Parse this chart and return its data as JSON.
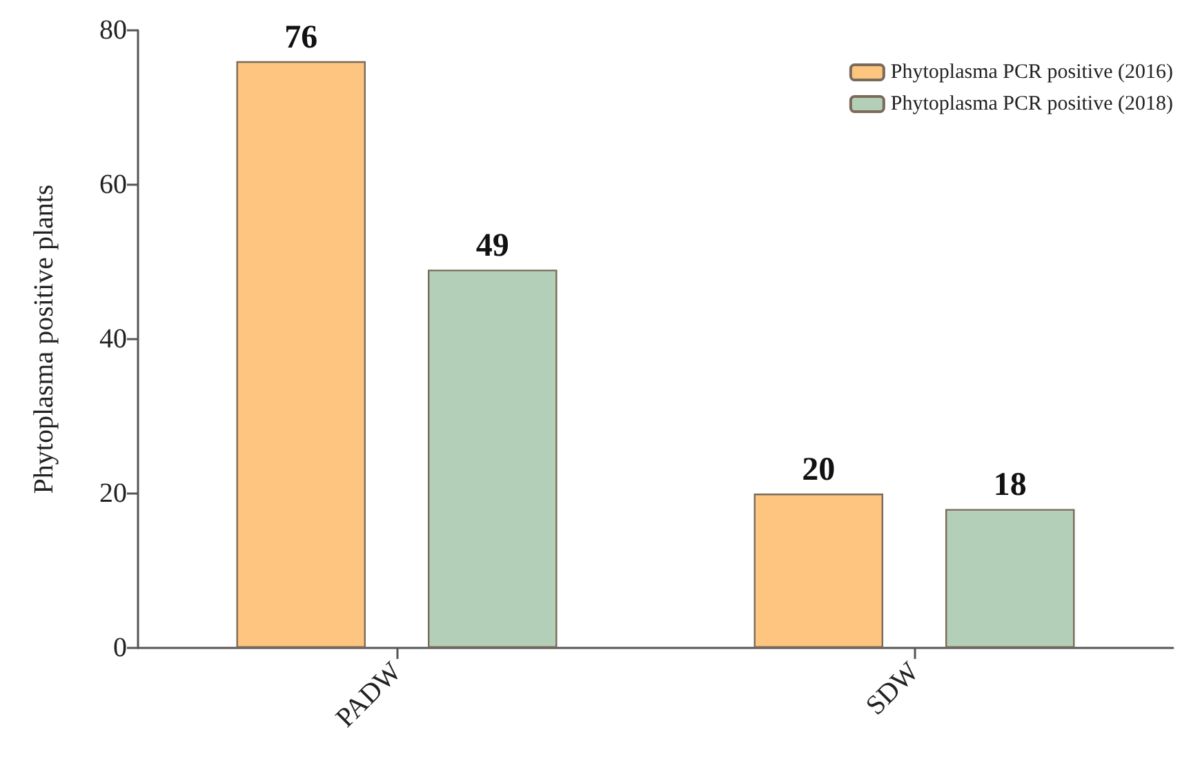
{
  "chart_data": {
    "type": "bar",
    "ylabel": "Phytoplasma positive plants",
    "categories": [
      "PADW",
      "SDW"
    ],
    "series": [
      {
        "name": "Phytoplasma PCR positive (2016)",
        "color": "#fdc57f",
        "values": [
          76,
          20
        ]
      },
      {
        "name": "Phytoplasma PCR positive (2018)",
        "color": "#b3cfb8",
        "values": [
          49,
          18
        ]
      }
    ],
    "ylim": [
      0,
      80
    ],
    "yticks": [
      0,
      20,
      40,
      60,
      80
    ],
    "grid": false,
    "legend": "top right",
    "data_labels": true
  }
}
